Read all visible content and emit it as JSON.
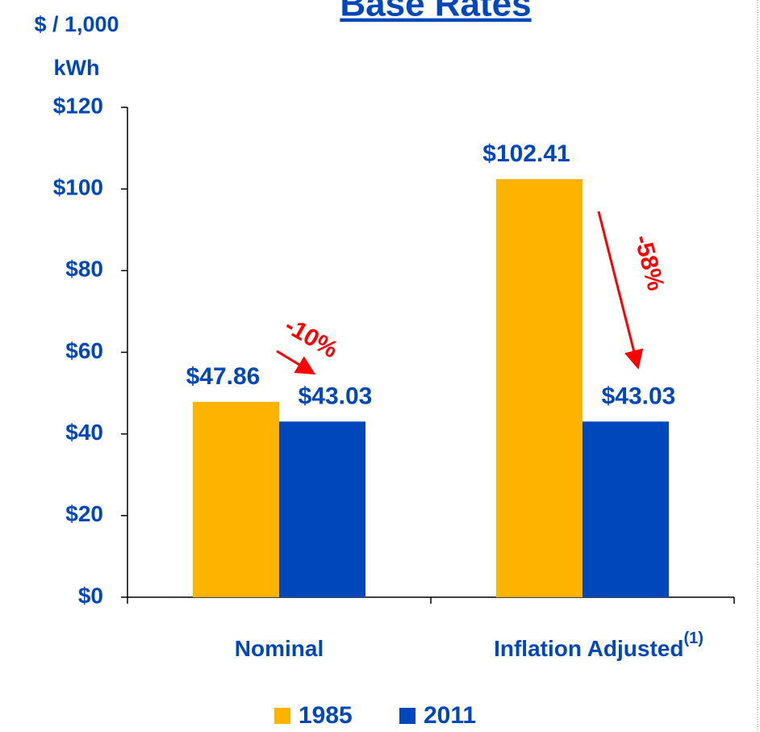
{
  "chart_data": {
    "type": "bar",
    "title": "Base Rates",
    "ylabel": [
      "$ / 1,000",
      "kWh"
    ],
    "categories": [
      "Nominal",
      "Inflation Adjusted"
    ],
    "category_footnotes": [
      null,
      "(1)"
    ],
    "series": [
      {
        "name": "1985",
        "color": "#fdb300",
        "values": [
          47.86,
          102.41
        ],
        "value_labels": [
          "$47.86",
          "$102.41"
        ]
      },
      {
        "name": "2011",
        "color": "#0047bb",
        "values": [
          43.03,
          43.03
        ],
        "value_labels": [
          "$43.03",
          "$43.03"
        ]
      }
    ],
    "ylim": [
      0,
      120
    ],
    "yticks": [
      {
        "value": 0,
        "label": "$0"
      },
      {
        "value": 20,
        "label": "$20"
      },
      {
        "value": 40,
        "label": "$40"
      },
      {
        "value": 60,
        "label": "$60"
      },
      {
        "value": 80,
        "label": "$80"
      },
      {
        "value": 100,
        "label": "$100"
      },
      {
        "value": 120,
        "label": "$120"
      }
    ],
    "annotations": [
      "-10%",
      "-58%"
    ],
    "annotation_color": "#ff0000",
    "legend": "bottom"
  }
}
